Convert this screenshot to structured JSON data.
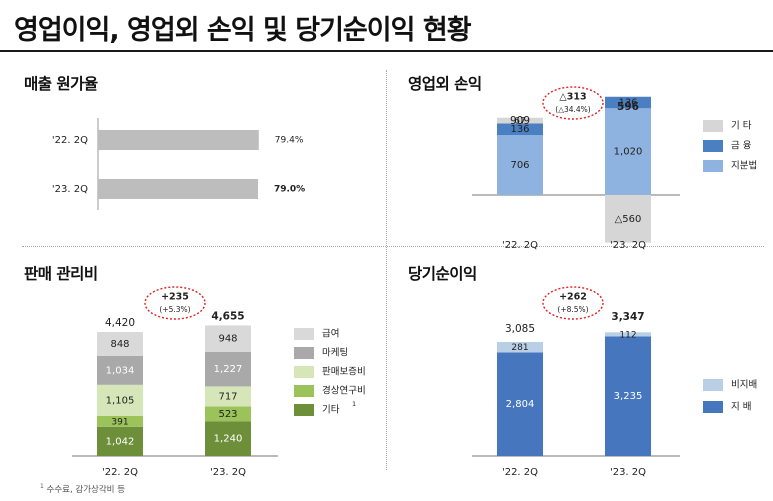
{
  "page": {
    "title": "영업이익, 영업외 손익 및 당기순이익 현황",
    "footnote_mark": "1",
    "footnote_text": "수수료, 감가상각비 등"
  },
  "colors": {
    "gray_bar": "#bdbdbd",
    "other": "#d6d6d6",
    "finance": "#4a7fc1",
    "equity": "#8fb3e0",
    "net_light": "#b8cfe6",
    "net_dark": "#4677be",
    "salary": "#d9d9d9",
    "marketing": "#a9a9a9",
    "warranty": "#d6e6b8",
    "rnd": "#9cc25a",
    "etc": "#6e8f3a",
    "bubble": "#e02020"
  },
  "chart_data": [
    {
      "id": "cogs",
      "type": "bar",
      "orientation": "horizontal",
      "title": "매출 원가율",
      "categories": [
        "'22. 2Q",
        "'23. 2Q"
      ],
      "values": [
        79.4,
        79.0
      ],
      "value_labels": [
        "79.4%",
        "79.0%"
      ]
    },
    {
      "id": "nonop",
      "type": "bar",
      "stacked": true,
      "title": "영업외 손익",
      "categories": [
        "'22. 2Q",
        "'23. 2Q"
      ],
      "series": [
        {
          "name": "지분법",
          "values": [
            706,
            1020
          ]
        },
        {
          "name": "금 융",
          "values": [
            136,
            136
          ]
        },
        {
          "name": "기 타",
          "values": [
            67,
            -560
          ]
        }
      ],
      "segment_labels": [
        [
          "706",
          "136",
          "67"
        ],
        [
          "1,020",
          "136",
          "△560"
        ]
      ],
      "totals": [
        909,
        596
      ],
      "total_labels": [
        "909",
        "596"
      ],
      "change_labels": [
        "△313",
        "(△34.4%)"
      ]
    },
    {
      "id": "sga",
      "type": "bar",
      "stacked": true,
      "title": "판매 관리비",
      "categories": [
        "'22. 2Q",
        "'23. 2Q"
      ],
      "series": [
        {
          "name": "기타",
          "values": [
            1042,
            1240
          ]
        },
        {
          "name": "경상연구비",
          "values": [
            391,
            523
          ]
        },
        {
          "name": "판매보증비",
          "values": [
            1105,
            717
          ]
        },
        {
          "name": "마케팅",
          "values": [
            1034,
            1227
          ]
        },
        {
          "name": "급여",
          "values": [
            848,
            948
          ]
        }
      ],
      "segment_labels": [
        [
          "1,042",
          "391",
          "1,105",
          "1,034",
          "848"
        ],
        [
          "1,240",
          "523",
          "717",
          "1,227",
          "948"
        ]
      ],
      "totals": [
        4420,
        4655
      ],
      "total_labels": [
        "4,420",
        "4,655"
      ],
      "change_labels": [
        "+235",
        "(+5.3%)"
      ]
    },
    {
      "id": "net",
      "type": "bar",
      "stacked": true,
      "title": "당기순이익",
      "categories": [
        "'22. 2Q",
        "'23. 2Q"
      ],
      "series": [
        {
          "name": "지 배",
          "values": [
            2804,
            3235
          ]
        },
        {
          "name": "비지배",
          "values": [
            281,
            112
          ]
        }
      ],
      "segment_labels": [
        [
          "2,804",
          "281"
        ],
        [
          "3,235",
          "112"
        ]
      ],
      "totals": [
        3085,
        3347
      ],
      "total_labels": [
        "3,085",
        "3,347"
      ],
      "change_labels": [
        "+262",
        "(+8.5%)"
      ]
    }
  ]
}
